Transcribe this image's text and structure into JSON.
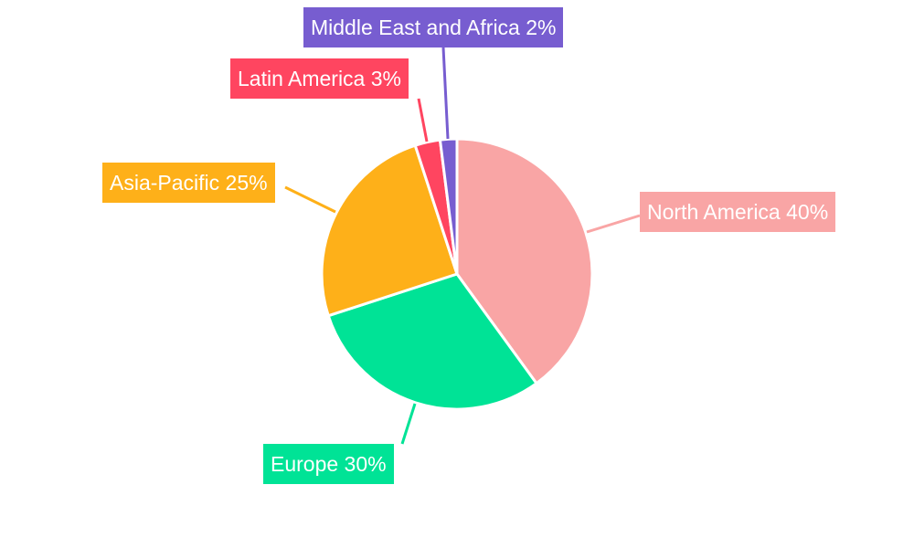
{
  "chart_data": {
    "type": "pie",
    "categories": [
      "North America",
      "Europe",
      "Asia-Pacific",
      "Latin America",
      "Middle East and Africa"
    ],
    "values": [
      40,
      30,
      25,
      3,
      2
    ],
    "labels": [
      "North America 40%",
      "Europe 30%",
      "Asia-Pacific 25%",
      "Latin America 3%",
      "Middle East and Africa 2%"
    ],
    "colors": [
      "#F9A5A5",
      "#00E396",
      "#FEB019",
      "#FF4560",
      "#775DD0"
    ],
    "start_angle": "12 o'clock",
    "direction": "clockwise",
    "legend": "none"
  }
}
